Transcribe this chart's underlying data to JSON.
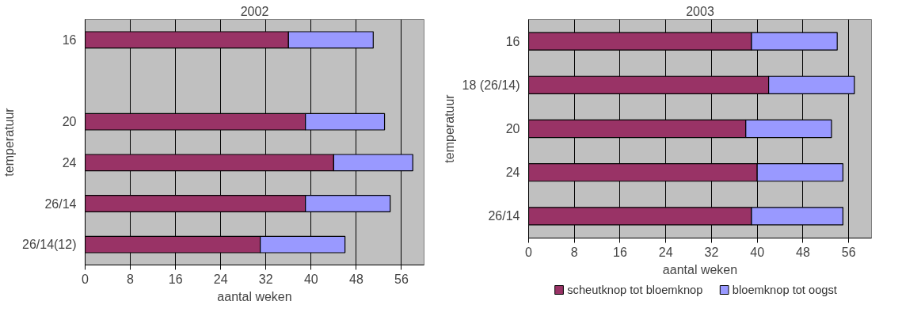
{
  "chart_data": [
    {
      "type": "bar",
      "orientation": "horizontal",
      "stacked": true,
      "title": "2002",
      "xlabel": "aantal weken",
      "ylabel": "temperatuur",
      "categories": [
        "16",
        null,
        "20",
        "24",
        "26/14",
        "26/14(12)"
      ],
      "series": [
        {
          "color": "#993366",
          "values": [
            36,
            null,
            39,
            44,
            39,
            31
          ]
        },
        {
          "color": "#9999ff",
          "values": [
            15,
            null,
            14,
            14,
            15,
            15
          ]
        }
      ],
      "xlim": [
        0,
        60
      ],
      "xticks": [
        0,
        8,
        16,
        24,
        32,
        40,
        48,
        56
      ],
      "grid": "x",
      "legend": false
    },
    {
      "type": "bar",
      "orientation": "horizontal",
      "stacked": true,
      "title": "2003",
      "xlabel": "aantal weken",
      "ylabel": "temperatuur",
      "categories": [
        "16",
        "18 (26/14)",
        "20",
        "24",
        "26/14"
      ],
      "series": [
        {
          "name": "scheutknop tot bloemknop",
          "color": "#993366",
          "values": [
            39,
            42,
            38,
            40,
            39
          ]
        },
        {
          "name": "bloemknop tot oogst",
          "color": "#9999ff",
          "values": [
            15,
            15,
            15,
            15,
            16
          ]
        }
      ],
      "xlim": [
        0,
        60
      ],
      "xticks": [
        0,
        8,
        16,
        24,
        32,
        40,
        48,
        56
      ],
      "grid": "x",
      "legend": "bottom"
    }
  ]
}
